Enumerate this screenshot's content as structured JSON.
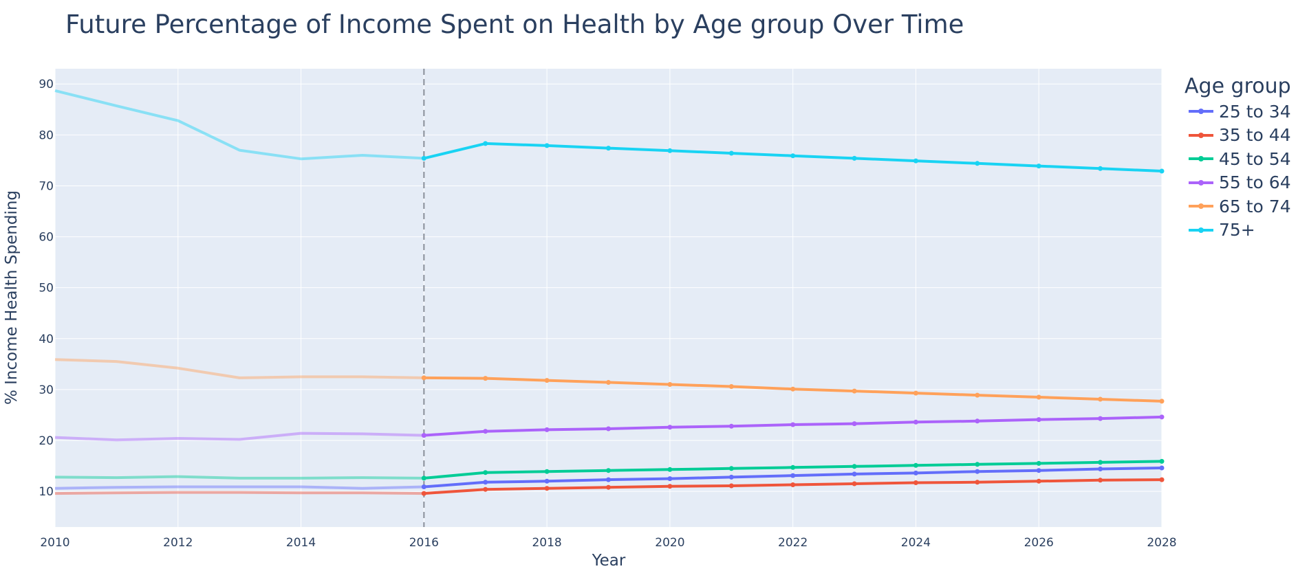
{
  "chart_data": {
    "type": "line",
    "title": "Future Percentage of Income Spent on Health by Age group Over Time",
    "xlabel": "Year",
    "ylabel": "% Income Health Spending",
    "xlim": [
      2010,
      2028
    ],
    "ylim": [
      3,
      93
    ],
    "x_ticks": [
      "2010",
      "2012",
      "2014",
      "2016",
      "2018",
      "2020",
      "2022",
      "2024",
      "2026",
      "2028"
    ],
    "y_ticks": [
      "10",
      "20",
      "30",
      "40",
      "50",
      "60",
      "70",
      "80",
      "90"
    ],
    "forecast_start": 2016,
    "legend_title": "Age group",
    "legend_position": "right",
    "grid": true,
    "historical_x": [
      2010,
      2011,
      2012,
      2013,
      2014,
      2015,
      2016
    ],
    "forecast_x": [
      2016,
      2017,
      2018,
      2019,
      2020,
      2021,
      2022,
      2023,
      2024,
      2025,
      2026,
      2027,
      2028
    ],
    "series": [
      {
        "name": "25 to 34",
        "color": "#636efa",
        "historical": [
          10.6,
          10.8,
          10.9,
          10.9,
          10.9,
          10.6,
          10.9
        ],
        "forecast": [
          10.9,
          11.8,
          12.0,
          12.3,
          12.5,
          12.8,
          13.1,
          13.4,
          13.6,
          13.9,
          14.1,
          14.4,
          14.6
        ]
      },
      {
        "name": "35 to 44",
        "color": "#ef553b",
        "historical": [
          9.6,
          9.7,
          9.8,
          9.8,
          9.7,
          9.7,
          9.6
        ],
        "forecast": [
          9.6,
          10.4,
          10.6,
          10.8,
          11.0,
          11.1,
          11.3,
          11.5,
          11.7,
          11.8,
          12.0,
          12.2,
          12.3
        ]
      },
      {
        "name": "45 to 54",
        "color": "#00cc96",
        "historical": [
          12.8,
          12.7,
          12.9,
          12.6,
          12.6,
          12.7,
          12.6
        ],
        "forecast": [
          12.6,
          13.7,
          13.9,
          14.1,
          14.3,
          14.5,
          14.7,
          14.9,
          15.1,
          15.3,
          15.5,
          15.7,
          15.9
        ]
      },
      {
        "name": "55 to 64",
        "color": "#ab63fa",
        "historical": [
          20.6,
          20.1,
          20.4,
          20.2,
          21.4,
          21.3,
          21.0
        ],
        "forecast": [
          21.0,
          21.8,
          22.1,
          22.3,
          22.6,
          22.8,
          23.1,
          23.3,
          23.6,
          23.8,
          24.1,
          24.3,
          24.6
        ]
      },
      {
        "name": "65 to 74",
        "color": "#ffa15a",
        "historical": [
          35.9,
          35.5,
          34.2,
          32.3,
          32.5,
          32.5,
          32.3
        ],
        "forecast": [
          32.3,
          32.2,
          31.8,
          31.4,
          31.0,
          30.6,
          30.1,
          29.7,
          29.3,
          28.9,
          28.5,
          28.1,
          27.7
        ]
      },
      {
        "name": "75+",
        "color": "#19d3f3",
        "historical": [
          88.7,
          85.7,
          82.8,
          77.0,
          75.3,
          76.0,
          75.4
        ],
        "forecast": [
          75.4,
          78.3,
          77.9,
          77.4,
          76.9,
          76.4,
          75.9,
          75.4,
          74.9,
          74.4,
          73.9,
          73.4,
          72.9
        ]
      }
    ]
  }
}
